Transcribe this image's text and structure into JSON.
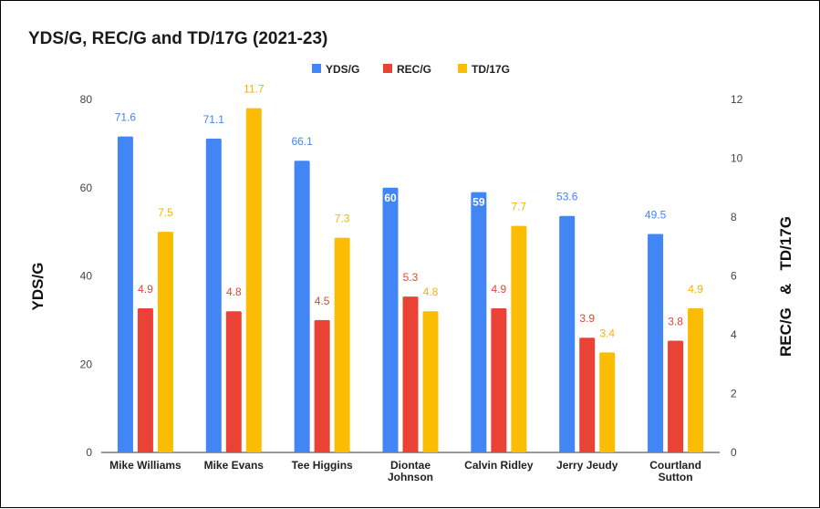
{
  "chart_data": {
    "type": "bar",
    "title": "YDS/G, REC/G and TD/17G (2021-23)",
    "categories": [
      [
        "Mike Williams"
      ],
      [
        "Mike Evans"
      ],
      [
        "Tee Higgins"
      ],
      [
        "Diontae",
        "Johnson"
      ],
      [
        "Calvin Ridley"
      ],
      [
        "Jerry Jeudy"
      ],
      [
        "Courtland",
        "Sutton"
      ]
    ],
    "series": [
      {
        "name": "YDS/G",
        "axis": "left",
        "color": "#4285f4",
        "values": [
          71.6,
          71.1,
          66.1,
          60,
          59,
          53.6,
          49.5
        ],
        "labels": [
          "71.6",
          "71.1",
          "66.1",
          "60",
          "59",
          "53.6",
          "49.5"
        ]
      },
      {
        "name": "REC/G",
        "axis": "right",
        "color": "#ea4335",
        "values": [
          4.9,
          4.8,
          4.5,
          5.3,
          4.9,
          3.9,
          3.8
        ],
        "labels": [
          "4.9",
          "4.8",
          "4.5",
          "5.3",
          "4.9",
          "3.9",
          "3.8"
        ]
      },
      {
        "name": "TD/17G",
        "axis": "right",
        "color": "#fbbc04",
        "values": [
          7.5,
          11.7,
          7.3,
          4.8,
          7.7,
          3.4,
          4.9
        ],
        "labels": [
          "7.5",
          "11.7",
          "7.3",
          "4.8",
          "7.7",
          "3.4",
          "4.9"
        ]
      }
    ],
    "inside_labels": [
      [
        0,
        3
      ],
      [
        0,
        4
      ]
    ],
    "ylabel_left": "YDS/G",
    "ylabel_right": "REC/G   &   TD/17G",
    "ylim_left": [
      0,
      80
    ],
    "yticks_left": [
      "0",
      "20",
      "40",
      "60",
      "80"
    ],
    "ylim_right": [
      0,
      12
    ],
    "yticks_right": [
      "0",
      "2",
      "4",
      "6",
      "8",
      "10",
      "12"
    ],
    "legend": "top-center",
    "grid": false
  }
}
